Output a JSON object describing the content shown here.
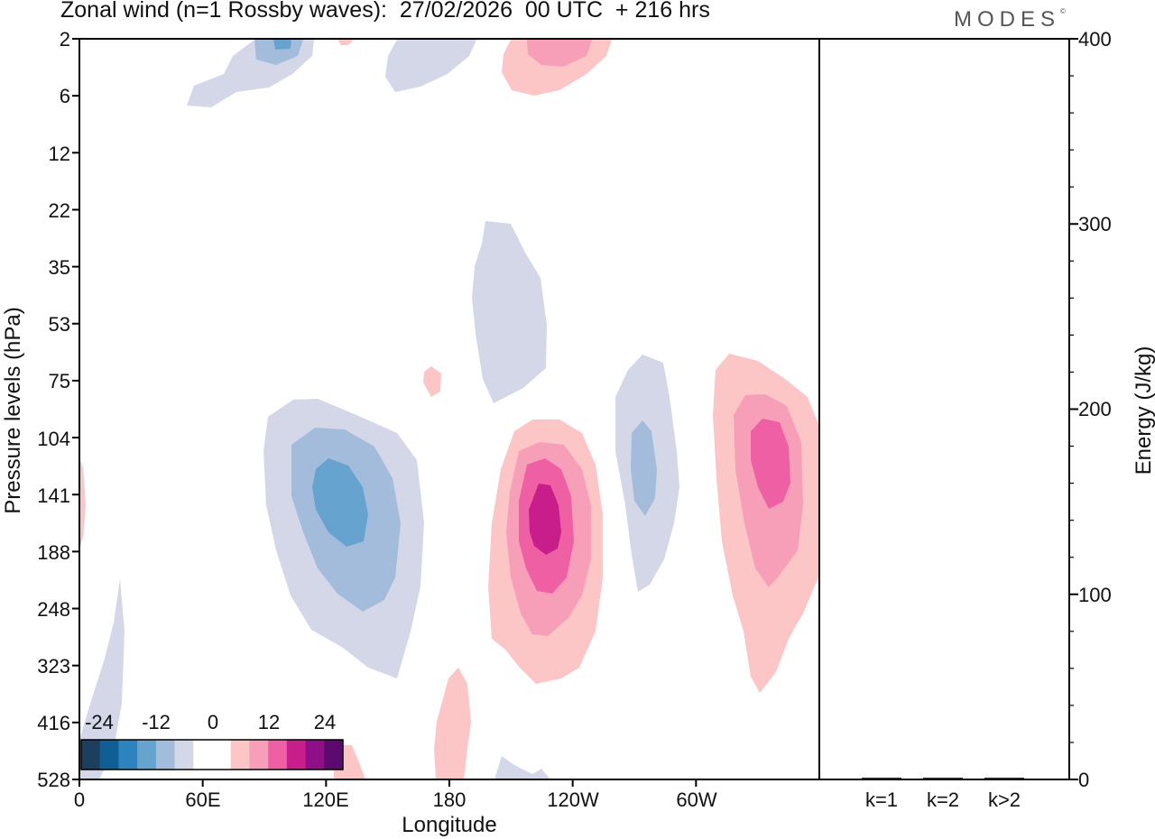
{
  "header": {
    "title": "Zonal wind (n=1 Rossby waves):  27/02/2026  00 UTC  + 216 hrs",
    "brand": "MODES",
    "brand_mark": "©"
  },
  "chart_data": [
    {
      "type": "contour",
      "title": "Zonal wind (n=1 Rossby waves):  27/02/2026  00 UTC  + 216 hrs",
      "xlabel": "Longitude",
      "ylabel": "Pressure levels (hPa)",
      "x_ticks": [
        "0",
        "60E",
        "120E",
        "180",
        "120W",
        "60W"
      ],
      "x_range_deg": [
        0,
        360
      ],
      "y_ticks": [
        "2",
        "6",
        "12",
        "22",
        "35",
        "53",
        "75",
        "104",
        "141",
        "188",
        "248",
        "323",
        "416",
        "528"
      ],
      "contour_levels": [
        -30,
        -24,
        -18,
        -12,
        -6,
        0,
        6,
        12,
        18,
        24,
        30
      ],
      "colorbar": {
        "labels": [
          "-24",
          "-12",
          "0",
          "12",
          "24"
        ],
        "colors": [
          "#1d3f5e",
          "#0f5f95",
          "#2d83be",
          "#66a4cf",
          "#a4bcdb",
          "#d4d7e8",
          "#ffffff",
          "#ffffff",
          "#fbc6c5",
          "#f79fb8",
          "#ef5fa3",
          "#c81e8c",
          "#8e1086",
          "#5c0a6e"
        ]
      },
      "features": [
        {
          "sign": "negative",
          "lon_deg": 125,
          "level_hPa": 141,
          "min": -18
        },
        {
          "sign": "negative",
          "lon_deg": 220,
          "level_hPa": 53,
          "min": -6
        },
        {
          "sign": "negative",
          "lon_deg": 275,
          "level_hPa": 125,
          "min": -12
        },
        {
          "sign": "negative",
          "lon_deg": 100,
          "level_hPa": 2,
          "min": -18
        },
        {
          "sign": "positive",
          "lon_deg": 227,
          "level_hPa": 160,
          "max": 24
        },
        {
          "sign": "positive",
          "lon_deg": 336,
          "level_hPa": 120,
          "max": 18
        },
        {
          "sign": "positive",
          "lon_deg": 240,
          "level_hPa": 3,
          "max": 12
        }
      ]
    },
    {
      "type": "bar",
      "ylabel": "Energy (J/kg)",
      "categories": [
        "k=1",
        "k=2",
        "k>2"
      ],
      "values": [
        0.5,
        0.3,
        0.6
      ],
      "ylim": [
        0,
        400
      ],
      "y_ticks": [
        "0",
        "100",
        "200",
        "300",
        "400"
      ]
    }
  ]
}
